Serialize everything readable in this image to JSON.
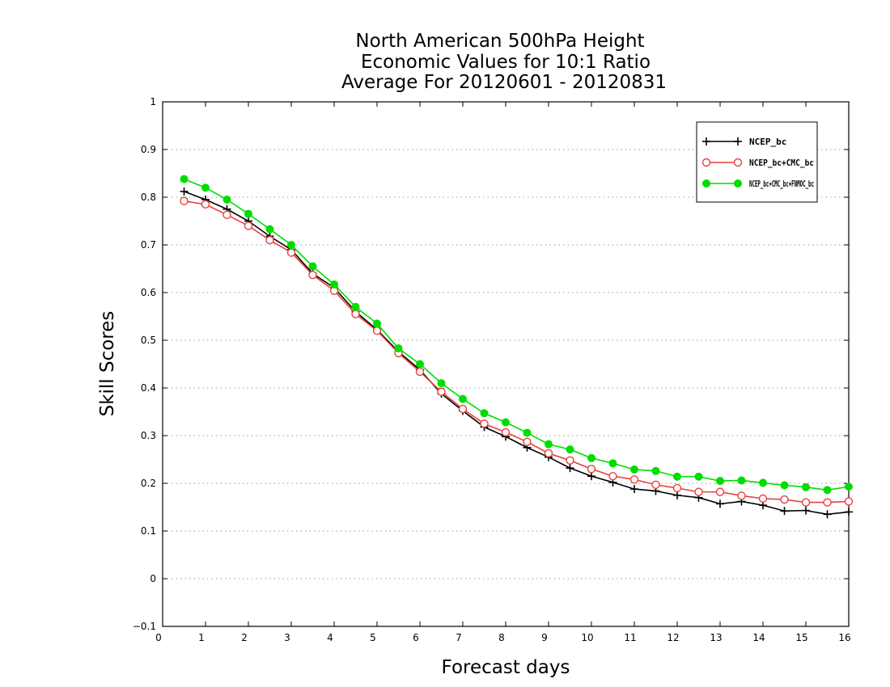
{
  "chart_data": {
    "type": "line",
    "title": [
      "North American 500hPa Height",
      "Economic Values for 10:1 Ratio",
      "Average For 20120601 - 20120831"
    ],
    "xlabel": "Forecast days",
    "ylabel": "Skill Scores",
    "xlim": [
      0,
      16
    ],
    "ylim": [
      -0.1,
      1
    ],
    "xticks": [
      "0",
      "1",
      "2",
      "3",
      "4",
      "5",
      "6",
      "7",
      "8",
      "9",
      "10",
      "11",
      "12",
      "13",
      "14",
      "15",
      "16"
    ],
    "yticks": [
      "−0.1",
      "0",
      "0.1",
      "0.2",
      "0.3",
      "0.4",
      "0.5",
      "0.6",
      "0.7",
      "0.8",
      "0.9",
      "1"
    ],
    "grid": true,
    "legend_position": "top-right",
    "x": [
      0.5,
      1,
      1.5,
      2,
      2.5,
      3,
      3.5,
      4,
      4.5,
      5,
      5.5,
      6,
      6.5,
      7,
      7.5,
      8,
      8.5,
      9,
      9.5,
      10,
      10.5,
      11,
      11.5,
      12,
      12.5,
      13,
      13.5,
      14,
      14.5,
      15,
      15.5,
      16
    ],
    "series": [
      {
        "name": "NCEP_bc",
        "color": "#000000",
        "marker": "plus",
        "values": [
          0.812,
          0.795,
          0.775,
          0.75,
          0.718,
          0.69,
          0.64,
          0.61,
          0.56,
          0.522,
          0.476,
          0.438,
          0.388,
          0.352,
          0.318,
          0.298,
          0.275,
          0.255,
          0.232,
          0.215,
          0.202,
          0.188,
          0.184,
          0.175,
          0.17,
          0.157,
          0.162,
          0.154,
          0.142,
          0.143,
          0.135,
          0.14
        ]
      },
      {
        "name": "NCEP_bc+CMC_bc",
        "color": "#e8403c",
        "marker": "open-circle",
        "values": [
          0.792,
          0.785,
          0.763,
          0.74,
          0.71,
          0.684,
          0.637,
          0.604,
          0.555,
          0.52,
          0.473,
          0.434,
          0.392,
          0.356,
          0.325,
          0.307,
          0.287,
          0.263,
          0.248,
          0.23,
          0.215,
          0.208,
          0.197,
          0.19,
          0.182,
          0.182,
          0.174,
          0.168,
          0.166,
          0.16,
          0.16,
          0.162
        ]
      },
      {
        "name": "NCEP_bc+CMC_bc+FNMOC_bc",
        "color": "#00dd00",
        "marker": "filled-circle",
        "values": [
          0.838,
          0.82,
          0.795,
          0.765,
          0.733,
          0.7,
          0.655,
          0.617,
          0.57,
          0.535,
          0.483,
          0.45,
          0.41,
          0.377,
          0.347,
          0.328,
          0.306,
          0.282,
          0.271,
          0.253,
          0.242,
          0.229,
          0.226,
          0.214,
          0.214,
          0.205,
          0.206,
          0.201,
          0.196,
          0.192,
          0.186,
          0.193
        ]
      }
    ]
  }
}
